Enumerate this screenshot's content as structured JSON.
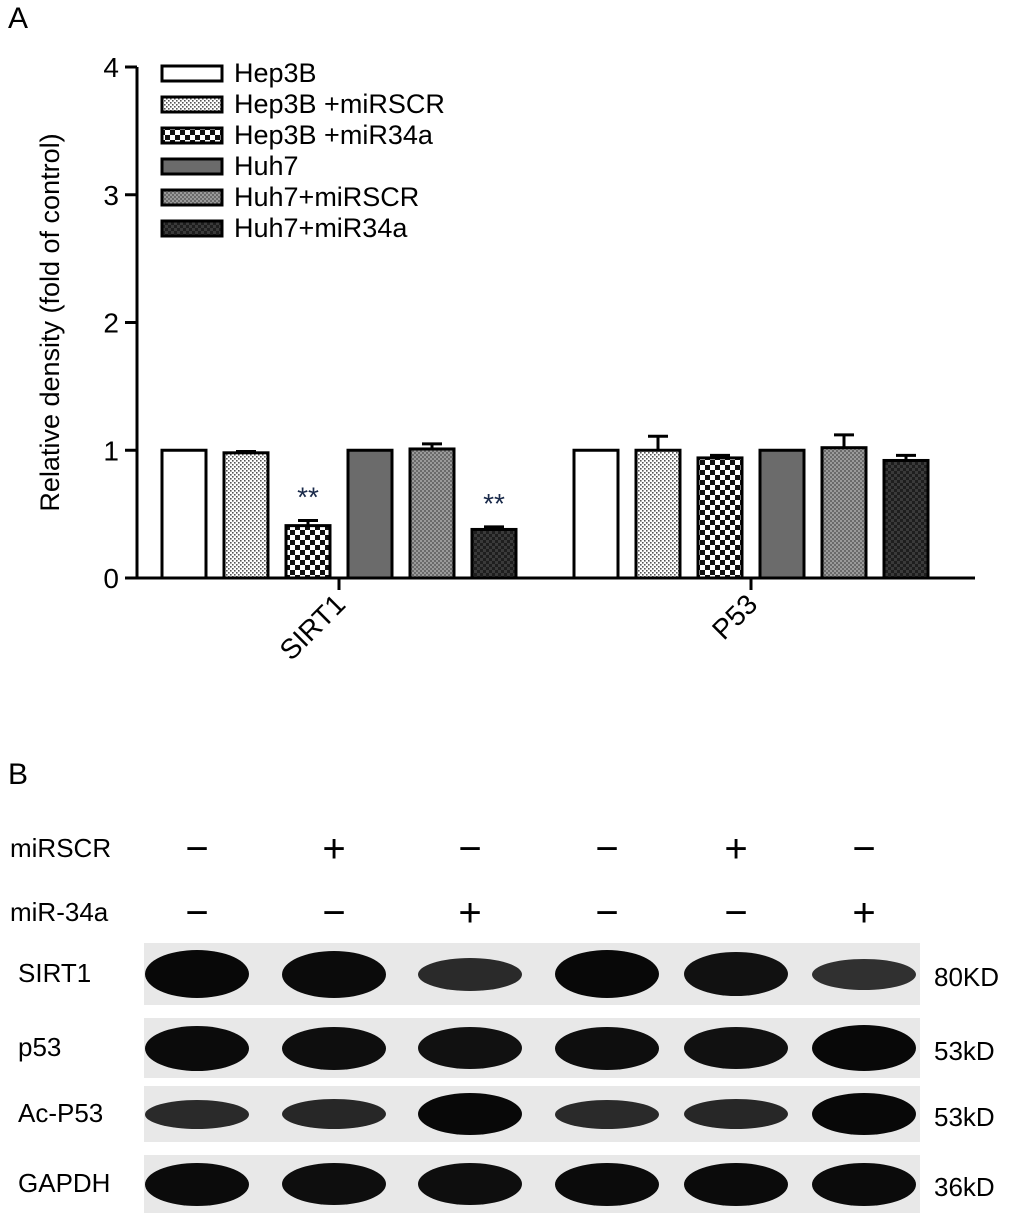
{
  "panel_a_label": "A",
  "panel_b_label": "B",
  "chart_data": {
    "type": "bar",
    "title": "",
    "xlabel": "",
    "ylabel": "Relative density (fold of control)",
    "ylim": [
      0,
      4
    ],
    "yticks": [
      "0",
      "1",
      "2",
      "3",
      "4"
    ],
    "categories": [
      "SIRT1",
      "P53"
    ],
    "grid": false,
    "legend_position": "top-left",
    "series": [
      {
        "name": "Hep3B",
        "values": [
          1.0,
          1.0
        ],
        "errors": [
          0.0,
          0.0
        ],
        "pattern": "white"
      },
      {
        "name": "Hep3B +miRSCR",
        "values": [
          0.98,
          1.0
        ],
        "errors": [
          0.01,
          0.11
        ],
        "pattern": "dots"
      },
      {
        "name": "Hep3B +miR34a",
        "values": [
          0.41,
          0.94
        ],
        "errors": [
          0.04,
          0.02
        ],
        "pattern": "checker"
      },
      {
        "name": "Huh7",
        "values": [
          1.0,
          1.0
        ],
        "errors": [
          0.0,
          0.0
        ],
        "pattern": "gray"
      },
      {
        "name": "Huh7+miRSCR",
        "values": [
          1.01,
          1.02
        ],
        "errors": [
          0.04,
          0.1
        ],
        "pattern": "mesh"
      },
      {
        "name": "Huh7+miR34a",
        "values": [
          0.38,
          0.92
        ],
        "errors": [
          0.02,
          0.04
        ],
        "pattern": "dark"
      }
    ],
    "annotations": [
      {
        "category": "SIRT1",
        "series": 2,
        "text": "**"
      },
      {
        "category": "SIRT1",
        "series": 5,
        "text": "**"
      }
    ]
  },
  "blot": {
    "treatments": [
      {
        "label": "miRSCR",
        "signs": [
          "−",
          "+",
          "−",
          "−",
          "+",
          "−"
        ]
      },
      {
        "label": "miR-34a",
        "signs": [
          "−",
          "−",
          "+",
          "−",
          "−",
          "+"
        ]
      }
    ],
    "rows": [
      {
        "label": "SIRT1",
        "size": "80KD",
        "intensity": [
          1.0,
          0.95,
          0.45,
          1.0,
          0.85,
          0.35
        ]
      },
      {
        "label": "p53",
        "size": "53kD",
        "intensity": [
          0.95,
          0.9,
          0.85,
          0.9,
          0.85,
          1.0
        ]
      },
      {
        "label": "Ac-P53",
        "size": "53kD",
        "intensity": [
          0.45,
          0.5,
          1.0,
          0.45,
          0.5,
          1.0
        ]
      },
      {
        "label": "GAPDH",
        "size": "36kD",
        "intensity": [
          0.95,
          0.9,
          0.9,
          0.95,
          0.95,
          0.95
        ]
      }
    ]
  }
}
